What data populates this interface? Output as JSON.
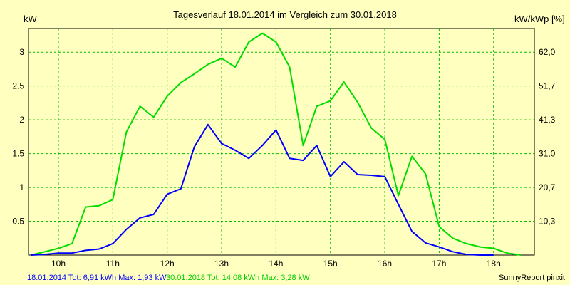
{
  "chart_data": {
    "type": "line",
    "title": "Tagesverlauf 18.01.2014 im Vergleich zum 30.01.2018",
    "ylabel_left": "kW",
    "ylabel_right": "kW/kWp [%]",
    "x_tick_labels": [
      "10h",
      "11h",
      "12h",
      "13h",
      "14h",
      "15h",
      "16h",
      "17h",
      "18h"
    ],
    "y_tick_labels": [
      "0.5",
      "1",
      "1.5",
      "2",
      "2.5",
      "3"
    ],
    "y_tick_values": [
      0.5,
      1,
      1.5,
      2,
      2.5,
      3
    ],
    "y2_tick_labels": [
      "10,3",
      "20,7",
      "31,0",
      "41,3",
      "51,7",
      "62,0"
    ],
    "xlim": [
      9.45,
      18.75
    ],
    "ylim": [
      0,
      3.35
    ],
    "grid": true,
    "background_color": "#ffffc0",
    "grid_color": "#00c000",
    "series": [
      {
        "name": "18.01.2014",
        "color": "#0000ff",
        "x": [
          9.5,
          9.75,
          10.0,
          10.25,
          10.5,
          10.75,
          11.0,
          11.25,
          11.5,
          11.75,
          12.0,
          12.25,
          12.5,
          12.75,
          13.0,
          13.25,
          13.5,
          13.75,
          14.0,
          14.25,
          14.5,
          14.75,
          15.0,
          15.25,
          15.5,
          15.75,
          16.0,
          16.25,
          16.5,
          16.75,
          17.0,
          17.25,
          17.5,
          17.75,
          18.0
        ],
        "y": [
          0,
          0.01,
          0.03,
          0.03,
          0.07,
          0.09,
          0.17,
          0.38,
          0.55,
          0.6,
          0.9,
          0.98,
          1.6,
          1.93,
          1.65,
          1.55,
          1.43,
          1.62,
          1.85,
          1.43,
          1.4,
          1.62,
          1.16,
          1.38,
          1.19,
          1.18,
          1.16,
          0.75,
          0.35,
          0.18,
          0.12,
          0.05,
          0.01,
          0,
          0
        ]
      },
      {
        "name": "30.01.2018",
        "color": "#00dd00",
        "x": [
          9.5,
          9.75,
          10.0,
          10.25,
          10.5,
          10.75,
          11.0,
          11.25,
          11.5,
          11.75,
          12.0,
          12.25,
          12.5,
          12.75,
          13.0,
          13.25,
          13.5,
          13.75,
          14.0,
          14.25,
          14.5,
          14.75,
          15.0,
          15.25,
          15.5,
          15.75,
          16.0,
          16.25,
          16.5,
          16.75,
          17.0,
          17.25,
          17.5,
          17.75,
          18.0,
          18.25,
          18.5
        ],
        "y": [
          0,
          0.05,
          0.1,
          0.17,
          0.71,
          0.73,
          0.82,
          1.82,
          2.2,
          2.04,
          2.35,
          2.55,
          2.68,
          2.82,
          2.91,
          2.78,
          3.15,
          3.28,
          3.15,
          2.78,
          1.62,
          2.2,
          2.28,
          2.56,
          2.26,
          1.88,
          1.71,
          0.88,
          1.46,
          1.2,
          0.42,
          0.25,
          0.17,
          0.12,
          0.1,
          0.03,
          0
        ]
      }
    ]
  },
  "footer": {
    "series1_label": "18.01.2014 Tot: 6,91 kWh Max: 1,93 kW",
    "series2_label": "30.01.2018 Tot: 14,08 kWh Max: 3,28 kW",
    "brand": "SunnyReport pinxit"
  }
}
